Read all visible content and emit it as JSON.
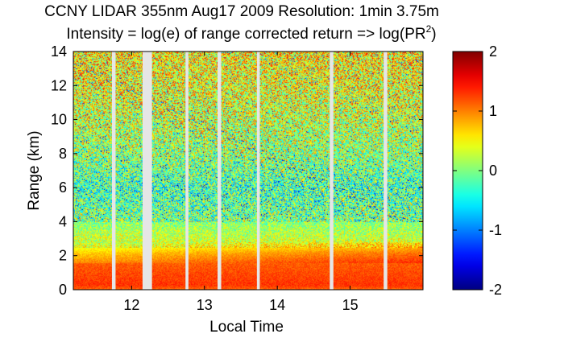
{
  "chart_data": {
    "type": "heatmap",
    "title": "CCNY LIDAR 355nm Aug17 2009 Resolution: 1min 3.75m",
    "subtitle_prefix": "Intensity = log(e) of range corrected return => log(PR",
    "subtitle_superscript": "2",
    "subtitle_suffix": ")",
    "xlabel": "Local Time",
    "ylabel": "Range (km)",
    "xlim": [
      11.2,
      16.0
    ],
    "ylim": [
      0,
      14
    ],
    "xticks": [
      12,
      13,
      14,
      15
    ],
    "yticks": [
      0,
      2,
      4,
      6,
      8,
      10,
      12,
      14
    ],
    "colorbar": {
      "range": [
        -2,
        2
      ],
      "ticks": [
        2,
        1,
        0,
        -1,
        -2
      ],
      "colormap": "jet"
    },
    "data_gaps_hours": [
      [
        11.73,
        11.78
      ],
      [
        12.15,
        12.28
      ],
      [
        12.74,
        12.78
      ],
      [
        13.18,
        13.23
      ],
      [
        13.72,
        13.76
      ],
      [
        14.72,
        14.77
      ],
      [
        15.46,
        15.51
      ]
    ],
    "intensity_profile": [
      {
        "range_km": 0.0,
        "value": 1.1
      },
      {
        "range_km": 0.3,
        "value": 1.3
      },
      {
        "range_km": 1.5,
        "value": 1.15
      },
      {
        "range_km": 2.2,
        "value": 0.8
      },
      {
        "range_km": 2.8,
        "value": 0.35
      },
      {
        "range_km": 4.0,
        "value": 0.05
      },
      {
        "range_km": 6.0,
        "value": -0.2
      },
      {
        "range_km": 8.0,
        "value": 0.15
      },
      {
        "range_km": 10.0,
        "value": 0.35
      },
      {
        "range_km": 12.0,
        "value": 0.5
      },
      {
        "range_km": 14.0,
        "value": 0.6
      }
    ]
  }
}
